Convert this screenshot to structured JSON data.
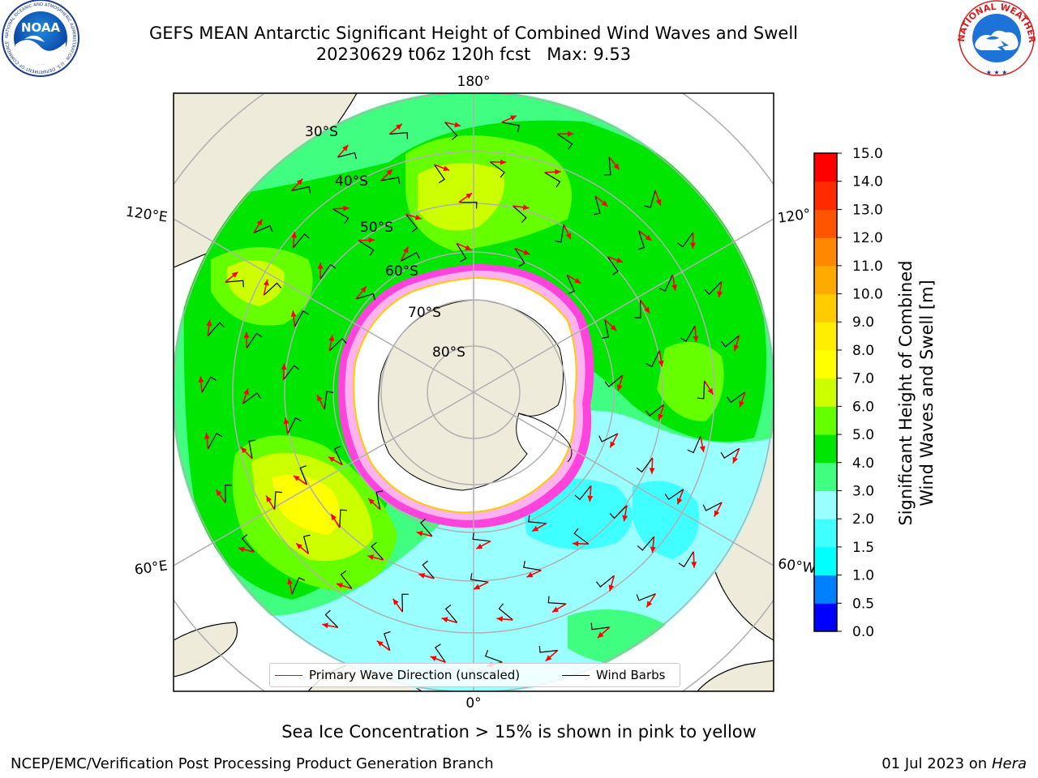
{
  "header": {
    "title": "GEFS MEAN Antarctic Significant Height of Combined Wind Waves and Swell",
    "subtitle": "20230629 t06z 120h fcst   Max: 9.53",
    "logo_left": "NOAA",
    "logo_left_ring": "NATIONAL OCEANIC AND ATMOSPHERIC ADMINISTRATION · U.S. DEPARTMENT OF COMMERCE",
    "logo_right_ring": "NATIONAL WEATHER SERVICE"
  },
  "map": {
    "longitude_labels": [
      "180°",
      "120°E",
      "120°",
      "60°E",
      "60°W",
      "0°"
    ],
    "latitude_labels": [
      "30°S",
      "40°S",
      "50°S",
      "60°S",
      "70°S",
      "80°S"
    ],
    "colors": {
      "land": "#efebda",
      "antarctica_ice": "#ffffff",
      "sea_ice_edge": "#ff44dd",
      "grid": "#b0b0b0",
      "wave_arrow": "#ff0000",
      "wind_barb": "#000000"
    }
  },
  "legend": {
    "primary_wave": "Primary Wave Direction (unscaled)",
    "wind_barbs": "Wind Barbs"
  },
  "colorbar": {
    "label_line1": "Significant Height of Combined",
    "label_line2": "Wind Waves and Swell [m]",
    "ticks": [
      "15.0",
      "14.0",
      "13.0",
      "12.0",
      "11.0",
      "10.0",
      "9.0",
      "8.0",
      "7.0",
      "6.0",
      "5.0",
      "4.0",
      "3.0",
      "2.0",
      "1.5",
      "1.0",
      "0.5",
      "0.0"
    ],
    "colors": [
      "#0000ff",
      "#0080ff",
      "#00ffff",
      "#40ffff",
      "#99ffff",
      "#40ff80",
      "#00e600",
      "#66ff00",
      "#ccff00",
      "#ffff00",
      "#ffee00",
      "#ffcc00",
      "#ffaa00",
      "#ff8800",
      "#ff5500",
      "#ff2a00",
      "#ff0000"
    ]
  },
  "footer": {
    "note": "Sea Ice Concentration > 15% is shown in pink to yellow",
    "left": "NCEP/EMC/Verification Post Processing Product Generation Branch",
    "right_date": "01 Jul 2023 on ",
    "right_machine": "Hera"
  }
}
